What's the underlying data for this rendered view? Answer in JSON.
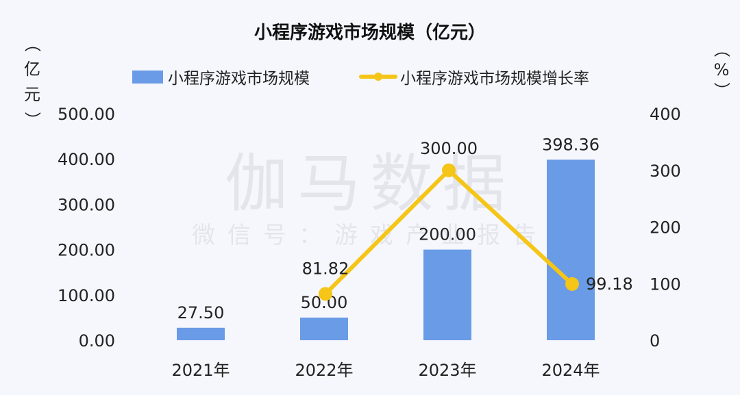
{
  "chart_data": {
    "type": "bar",
    "title": "小程序游戏市场规模（亿元）",
    "categories": [
      "2021年",
      "2022年",
      "2023年",
      "2024年"
    ],
    "series": [
      {
        "name": "小程序游戏市场规模",
        "type": "bar",
        "axis": "left",
        "values": [
          27.5,
          50.0,
          200.0,
          398.36
        ],
        "labels": [
          "27.50",
          "50.00",
          "200.00",
          "398.36"
        ],
        "color": "#6a9be6"
      },
      {
        "name": "小程序游戏市场规模增长率",
        "type": "line",
        "axis": "right",
        "values": [
          null,
          81.82,
          300.0,
          99.18
        ],
        "labels": [
          "",
          "81.82",
          "300.00",
          "99.18"
        ],
        "color": "#f5c518"
      }
    ],
    "ylabel": "（亿元）",
    "y2label": "（%）",
    "ylim": [
      0,
      500
    ],
    "y2lim": [
      0,
      400
    ],
    "yticks": [
      "0.00",
      "100.00",
      "200.00",
      "300.00",
      "400.00",
      "500.00"
    ],
    "y2ticks": [
      "0",
      "100",
      "200",
      "300",
      "400"
    ],
    "legend_position": "top",
    "grid": false
  },
  "watermark": {
    "main": "伽马数据",
    "sub": "微信号：游戏产业报告"
  }
}
